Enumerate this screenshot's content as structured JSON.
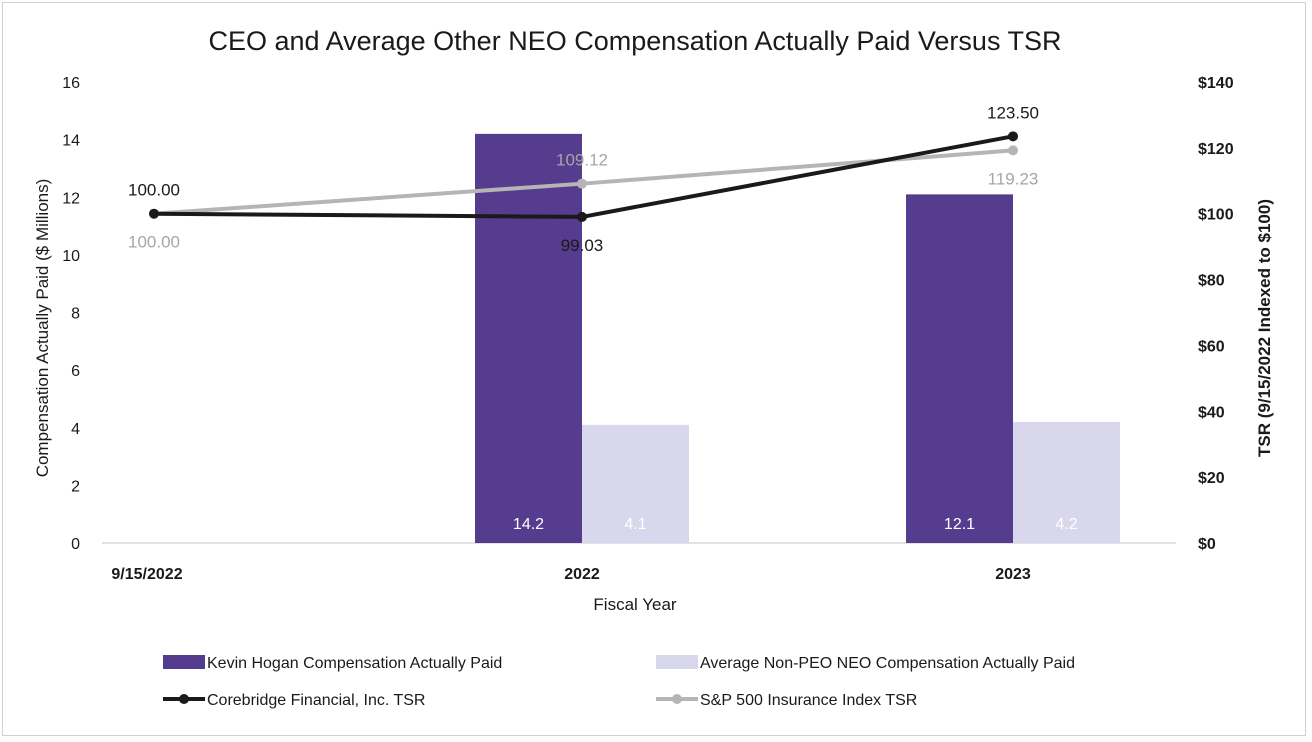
{
  "chart_data": {
    "type": "bar+line",
    "title": "CEO and Average Other NEO Compensation Actually Paid Versus TSR",
    "xlabel": "Fiscal Year",
    "ylabel_left": "Compensation Actually Paid ($ Millions)",
    "ylabel_right": "TSR (9/15/2022 Indexed to $100)",
    "categories": [
      "9/15/2022",
      "2022",
      "2023"
    ],
    "ylim_left": [
      0,
      16
    ],
    "ylim_right": [
      0,
      140
    ],
    "left_ticks": [
      "0",
      "2",
      "4",
      "6",
      "8",
      "10",
      "12",
      "14",
      "16"
    ],
    "left_tick_values": [
      0,
      2,
      4,
      6,
      8,
      10,
      12,
      14,
      16
    ],
    "right_ticks": [
      "$0",
      "$20",
      "$40",
      "$60",
      "$80",
      "$100",
      "$120",
      "$140"
    ],
    "right_tick_values": [
      0,
      20,
      40,
      60,
      80,
      100,
      120,
      140
    ],
    "bar_series": [
      {
        "name": "Kevin Hogan Compensation Actually Paid",
        "color": "#553c8f",
        "values": [
          null,
          14.2,
          12.1
        ],
        "labels": [
          "",
          "14.2",
          "12.1"
        ]
      },
      {
        "name": "Average Non-PEO NEO Compensation Actually Paid",
        "color": "#d9d7ec",
        "values": [
          null,
          4.1,
          4.2
        ],
        "labels": [
          "",
          "4.1",
          "4.2"
        ]
      }
    ],
    "line_series": [
      {
        "name": "Corebridge Financial, Inc. TSR",
        "color": "#1a1a1a",
        "label_color": "#1a1a1a",
        "values": [
          100.0,
          99.03,
          123.5
        ],
        "labels": [
          "100.00",
          "99.03",
          "123.50"
        ],
        "label_positions": [
          "above",
          "below",
          "above"
        ]
      },
      {
        "name": "S&P 500 Insurance Index TSR",
        "color": "#b5b5b5",
        "label_color": "#a6a6a6",
        "values": [
          100.0,
          109.12,
          119.23
        ],
        "labels": [
          "100.00",
          "109.12",
          "119.23"
        ],
        "label_positions": [
          "below",
          "above",
          "below"
        ]
      }
    ],
    "legend": [
      {
        "label": "Kevin Hogan Compensation Actually Paid",
        "kind": "bar",
        "color": "#553c8f"
      },
      {
        "label": "Average Non-PEO NEO Compensation Actually Paid",
        "kind": "bar",
        "color": "#d9d7ec"
      },
      {
        "label": "Corebridge Financial, Inc. TSR",
        "kind": "line",
        "color": "#1a1a1a"
      },
      {
        "label": "S&P 500 Insurance Index TSR",
        "kind": "line",
        "color": "#b5b5b5"
      }
    ],
    "legend_placement": "bottom",
    "grid": false
  }
}
